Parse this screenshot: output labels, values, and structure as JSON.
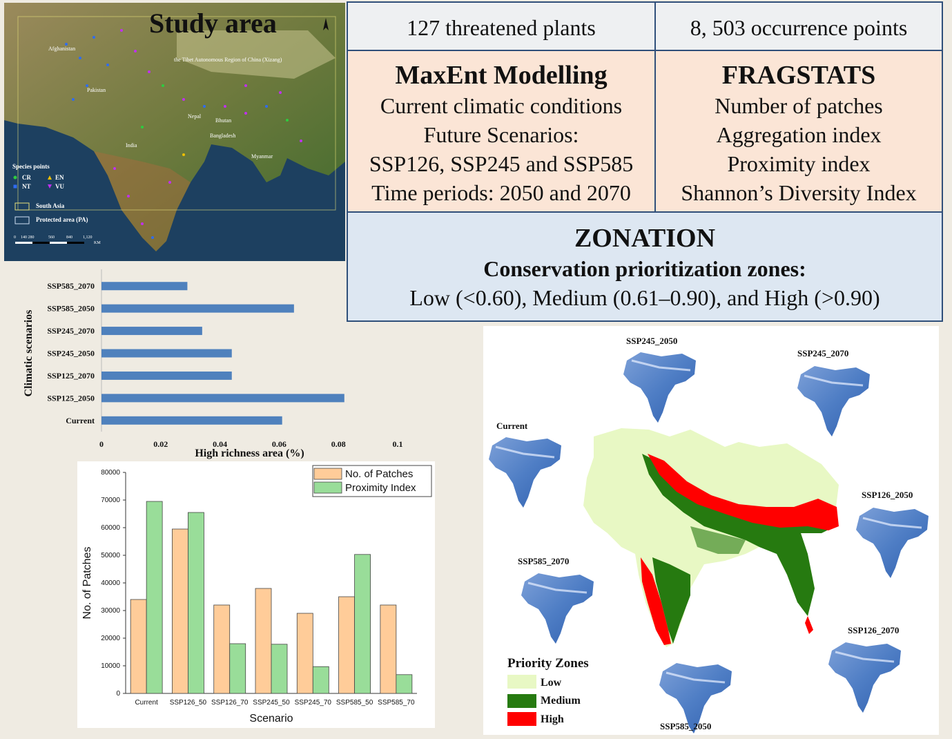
{
  "study_area": {
    "title": "Study area",
    "places": {
      "afghanistan": "Afghanistan",
      "pakistan": "Pakistan",
      "tibet": "the Tibet Autonomous Region of China (Xizang)",
      "nepal": "Nepal",
      "bhutan": "Bhutan",
      "bangladesh": "Bangladesh",
      "india": "India",
      "myanmar": "Myanmar"
    },
    "legend": {
      "title": "Species points",
      "cr": "CR",
      "en": "EN",
      "nt": "NT",
      "vu": "VU",
      "south_asia": "South Asia",
      "protected_area": "Protected area (PA)"
    },
    "scale_bar": {
      "ticks": [
        "0",
        "140 280",
        "560",
        "840",
        "1,120"
      ],
      "unit": "KM"
    },
    "colors": {
      "cr": "#2ecc40",
      "en": "#f0c000",
      "nt": "#2f6cf0",
      "vu": "#c030f0"
    }
  },
  "info": {
    "plants": "127 threatened plants",
    "points": "8, 503 occurrence points",
    "maxent": {
      "title": "MaxEnt Modelling",
      "lines": [
        "Current climatic conditions",
        "Future Scenarios:",
        "SSP126, SSP245 and SSP585",
        "Time periods: 2050 and 2070"
      ]
    },
    "fragstats": {
      "title": "FRAGSTATS",
      "lines": [
        "Number of patches",
        "Aggregation index",
        "Proximity index",
        "Shannon’s Diversity Index"
      ]
    },
    "zonation": {
      "title": "ZONATION",
      "subtitle": "Conservation prioritization zones:",
      "zones": "Low (<0.60), Medium (0.61–0.90), and High (>0.90)"
    }
  },
  "chart_data": [
    {
      "type": "bar",
      "orientation": "horizontal",
      "categories": [
        "SSP585_2070",
        "SSP585_2050",
        "SSP245_2070",
        "SSP245_2050",
        "SSP125_2070",
        "SSP125_2050",
        "Current"
      ],
      "values": [
        0.029,
        0.065,
        0.034,
        0.044,
        0.044,
        0.082,
        0.061
      ],
      "xlabel": "High richness area (%)",
      "ylabel": "Climatic scenarios",
      "xlim": [
        0,
        0.1
      ],
      "xticks": [
        "0",
        "0.02",
        "0.04",
        "0.06",
        "0.08",
        "0.1"
      ],
      "color": "#4f81bd",
      "grid": false
    },
    {
      "type": "bar",
      "categories": [
        "Current",
        "SSP126_50",
        "SSP126_70",
        "SSP245_50",
        "SSP245_70",
        "SSP585_50",
        "SSP585_70"
      ],
      "series": [
        {
          "name": "No. of Patches",
          "color": "#ffcc99",
          "values": [
            34000,
            59500,
            32000,
            38000,
            29000,
            35000,
            32000
          ]
        },
        {
          "name": "Proximity Index",
          "color": "#99dd99",
          "values": [
            69500,
            65500,
            18000,
            17800,
            9700,
            50300,
            6800
          ]
        }
      ],
      "xlabel": "Scenario",
      "ylabel": "No. of Patches",
      "ylim": [
        0,
        80000
      ],
      "yticks": [
        "0",
        "10000",
        "20000",
        "30000",
        "40000",
        "50000",
        "60000",
        "70000",
        "80000"
      ],
      "legend": "top-right",
      "grid": false
    }
  ],
  "priority_map": {
    "labels": {
      "ssp245_2050": "SSP245_2050",
      "ssp245_2070": "SSP245_2070",
      "current": "Current",
      "ssp126_2050": "SSP126_2050",
      "ssp585_2070": "SSP585_2070",
      "ssp126_2070": "SSP126_2070",
      "ssp585_2050": "SSP585_2050"
    },
    "legend": {
      "title": "Priority Zones",
      "low": "Low",
      "medium": "Medium",
      "high": "High"
    },
    "colors": {
      "low": "#e8f8c4",
      "medium": "#267a10",
      "high": "#ff0000"
    }
  }
}
